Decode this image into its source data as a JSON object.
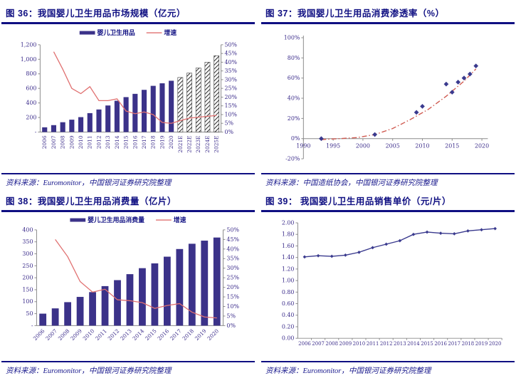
{
  "colors": {
    "title_navy": "#0f0f82",
    "rule_navy": "#0f0f82",
    "bar_fill": "#3b3289",
    "growth_line_red": "#e07070",
    "trend_red": "#cf5a50",
    "marker_navy": "#3a3a8e",
    "tick_label_purple": "#3d2e8c",
    "axis_gray": "#8c8c8c",
    "source_navy": "#17178c",
    "hatch_black": "#2f2f2f"
  },
  "panels": [
    {
      "title": "图 36：我国婴儿卫生用品市场规模（亿元）",
      "source": "资料来源：Euromonitor，中国银河证券研究院整理"
    },
    {
      "title": "图 37：我国婴儿卫生用品消费渗透率（%）",
      "source": "资料来源：中国造纸协会，中国银河证券研究院整理"
    },
    {
      "title": "图 38：我国婴儿卫生用品消费量（亿片）",
      "source": "资料来源：Euromonitor，中国银河证券研究院整理"
    },
    {
      "title": "图 39：  我国婴儿卫生用品销售单价（元/片）",
      "source": "资料来源：Euromonitor，中国银河证券研究院整理"
    }
  ],
  "chart_data": [
    {
      "type": "bar",
      "title": "我国婴儿卫生用品市场规模（亿元）",
      "categories": [
        "2006",
        "2007",
        "2008",
        "2009",
        "2010",
        "2011",
        "2012",
        "2013",
        "2014",
        "2015",
        "2016",
        "2017",
        "2018",
        "2019",
        "2020",
        "2021E",
        "2022E",
        "2023E",
        "2024E",
        "2025E"
      ],
      "series": [
        {
          "name": "婴儿卫生用品",
          "kind": "bar",
          "axis": "left",
          "values": [
            65,
            95,
            135,
            170,
            205,
            260,
            310,
            365,
            430,
            480,
            525,
            580,
            635,
            670,
            705,
            750,
            810,
            880,
            960,
            1050
          ],
          "forecast_start_index": 15,
          "forecast_style": "hatched"
        },
        {
          "name": "增速",
          "kind": "line",
          "axis": "right",
          "values": [
            null,
            46,
            36,
            25,
            22,
            26,
            18,
            18,
            19,
            12,
            10.5,
            11.5,
            10,
            5.5,
            5,
            6.5,
            8,
            8.5,
            9,
            9.5
          ]
        }
      ],
      "left_axis": {
        "ticks": [
          "-",
          "200",
          "400",
          "600",
          "800",
          "1,000",
          "1,200"
        ],
        "min": 0,
        "max": 1200
      },
      "right_axis": {
        "ticks": [
          "0%",
          "5%",
          "10%",
          "15%",
          "20%",
          "25%",
          "30%",
          "35%",
          "40%",
          "45%",
          "50%"
        ],
        "min": 0,
        "max": 50
      },
      "legend": [
        {
          "swatch": "bar",
          "label": "婴儿卫生用品"
        },
        {
          "swatch": "line",
          "label": "增速"
        }
      ],
      "legend_position": "top-center",
      "x_label_rotation": -90,
      "grid": false
    },
    {
      "type": "scatter",
      "title": "我国婴儿卫生用品消费渗透率（%）",
      "x": [
        1993,
        2002,
        2009,
        2010,
        2014,
        2015,
        2016,
        2017,
        2018,
        2019
      ],
      "y": [
        0,
        4,
        26,
        32,
        54,
        46,
        56,
        60,
        64,
        72
      ],
      "trend": {
        "style": "dash-dot",
        "x": [
          1993,
          1996,
          1999,
          2002,
          2005,
          2008,
          2011,
          2014,
          2017,
          2019
        ],
        "y": [
          -1,
          0,
          1,
          4,
          10,
          19,
          29,
          42,
          57,
          69
        ]
      },
      "x_ticks": [
        "1990",
        "1995",
        "2000",
        "2005",
        "2010",
        "2015",
        "2020"
      ],
      "x_tick_values": [
        1990,
        1995,
        2000,
        2005,
        2010,
        2015,
        2020
      ],
      "xlim": [
        1990,
        2021
      ],
      "y_ticks": [
        "-20%",
        "0%",
        "20%",
        "40%",
        "60%",
        "80%",
        "100%"
      ],
      "y_tick_values": [
        -20,
        0,
        20,
        40,
        60,
        80,
        100
      ],
      "ylim": [
        -20,
        100
      ],
      "grid": false
    },
    {
      "type": "bar",
      "title": "我国婴儿卫生用品消费量（亿片）",
      "categories": [
        "2006",
        "2007",
        "2008",
        "2009",
        "2010",
        "2011",
        "2012",
        "2013",
        "2014",
        "2015",
        "2016",
        "2017",
        "2018",
        "2019",
        "2020"
      ],
      "series": [
        {
          "name": "婴儿卫生用品消费量",
          "kind": "bar",
          "axis": "left",
          "values": [
            50,
            72,
            98,
            120,
            140,
            165,
            190,
            215,
            240,
            260,
            288,
            320,
            342,
            355,
            368
          ]
        },
        {
          "name": "增速",
          "kind": "line",
          "axis": "right",
          "values": [
            null,
            45,
            36,
            23,
            17.5,
            19,
            13.5,
            13,
            12,
            9,
            10.5,
            11.5,
            7,
            4.5,
            4
          ]
        }
      ],
      "left_axis": {
        "ticks": [
          "-",
          "50",
          "100",
          "150",
          "200",
          "250",
          "300",
          "350",
          "400"
        ],
        "min": 0,
        "max": 400
      },
      "right_axis": {
        "ticks": [
          "0%",
          "5%",
          "10%",
          "15%",
          "20%",
          "25%",
          "30%",
          "35%",
          "40%",
          "45%",
          "50%"
        ],
        "min": 0,
        "max": 50
      },
      "legend": [
        {
          "swatch": "bar",
          "label": "婴儿卫生用品消费量"
        },
        {
          "swatch": "line",
          "label": "增速"
        }
      ],
      "legend_position": "top-center",
      "x_label_rotation": -45,
      "grid": false
    },
    {
      "type": "line",
      "title": "我国婴儿卫生用品销售单价（元/片）",
      "categories": [
        "2006",
        "2007",
        "2008",
        "2009",
        "2010",
        "2011",
        "2012",
        "2013",
        "2014",
        "2015",
        "2016",
        "2017",
        "2018",
        "2019",
        "2020"
      ],
      "values": [
        1.41,
        1.43,
        1.42,
        1.44,
        1.49,
        1.57,
        1.63,
        1.69,
        1.8,
        1.84,
        1.82,
        1.81,
        1.86,
        1.88,
        1.9
      ],
      "y_ticks": [
        "0.00",
        "0.20",
        "0.40",
        "0.60",
        "0.80",
        "1.00",
        "1.20",
        "1.40",
        "1.60",
        "1.80",
        "2.00"
      ],
      "ylim": [
        0,
        2
      ],
      "grid": false
    }
  ]
}
